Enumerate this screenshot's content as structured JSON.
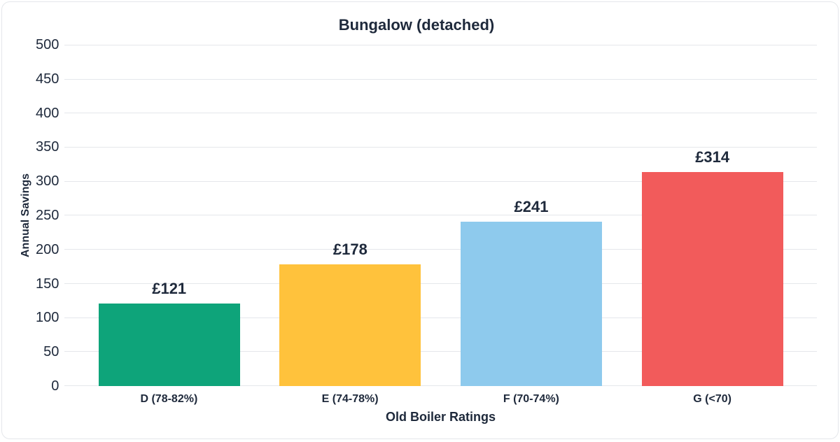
{
  "chart": {
    "type": "bar",
    "title": "Bungalow (detached)",
    "title_fontsize": 22,
    "title_fontweight": 700,
    "text_color": "#1e293b",
    "background_color": "#ffffff",
    "border_color": "#e5e7eb",
    "border_radius": 12,
    "grid_color": "#e5e7eb",
    "x_axis": {
      "label": "Old Boiler Ratings",
      "label_fontsize": 18,
      "tick_fontsize": 16,
      "tick_fontweight": 600,
      "categories": [
        "D (78-82%)",
        "E (74-78%)",
        "F (70-74%)",
        "G (<70)"
      ]
    },
    "y_axis": {
      "label": "Annual Savings",
      "label_fontsize": 16,
      "tick_fontsize": 20,
      "tick_fontweight": 500,
      "min": 0,
      "max": 500,
      "tick_step": 50,
      "ticks": [
        500,
        450,
        400,
        350,
        300,
        250,
        200,
        150,
        100,
        50,
        0
      ]
    },
    "bars": [
      {
        "category": "D (78-82%)",
        "value": 121,
        "label": "£121",
        "color": "#0ea47a"
      },
      {
        "category": "E (74-78%)",
        "value": 178,
        "label": "£178",
        "color": "#ffc23c"
      },
      {
        "category": "F (70-74%)",
        "value": 241,
        "label": "£241",
        "color": "#8ecaed"
      },
      {
        "category": "G (<70)",
        "value": 314,
        "label": "£314",
        "color": "#f25b5b"
      }
    ],
    "bar_width_ratio": 0.78,
    "value_label_fontsize": 22,
    "value_label_fontweight": 700,
    "currency_prefix": "£"
  }
}
